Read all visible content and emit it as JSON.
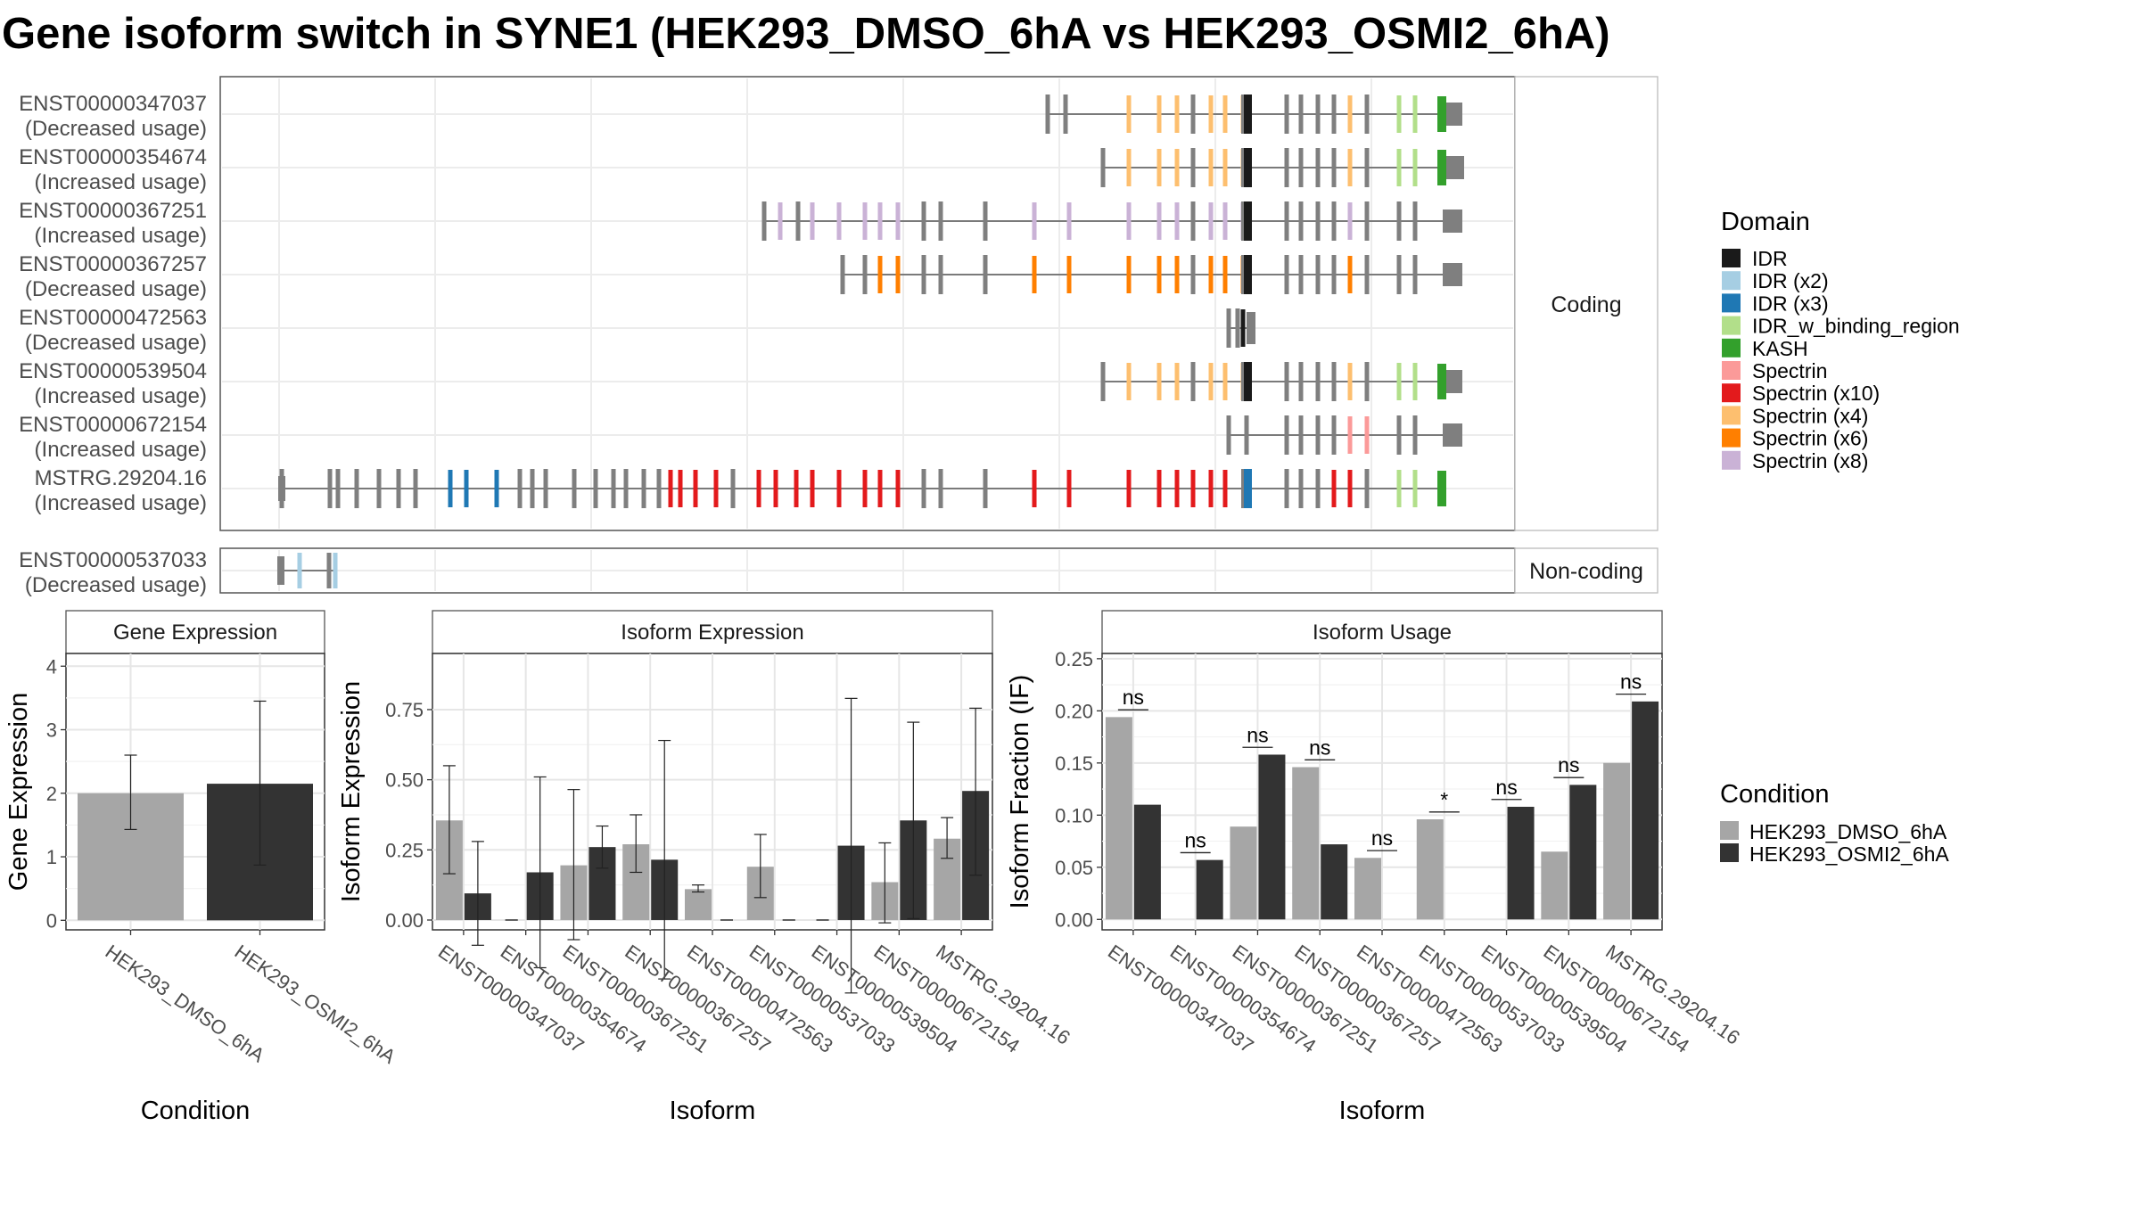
{
  "title": "Gene isoform switch in SYNE1 (HEK293_DMSO_6hA vs HEK293_OSMI2_6hA)",
  "structure": {
    "panel_labels": {
      "coding": "Coding",
      "noncoding": "Non-coding"
    },
    "legend": {
      "title": "Domain",
      "items": [
        {
          "label": "IDR",
          "color": "#1a1a1a"
        },
        {
          "label": "IDR (x2)",
          "color": "#a6cee3"
        },
        {
          "label": "IDR (x3)",
          "color": "#1f78b4"
        },
        {
          "label": "IDR_w_binding_region",
          "color": "#b2df8a"
        },
        {
          "label": "KASH",
          "color": "#33a02c"
        },
        {
          "label": "Spectrin",
          "color": "#fb9a99"
        },
        {
          "label": "Spectrin (x10)",
          "color": "#e31a1c"
        },
        {
          "label": "Spectrin (x4)",
          "color": "#fdbf6f"
        },
        {
          "label": "Spectrin (x6)",
          "color": "#ff7f00"
        },
        {
          "label": "Spectrin (x8)",
          "color": "#cab2d6"
        }
      ]
    },
    "coding_isoforms": [
      {
        "id": "ENST00000347037",
        "usage": "(Decreased usage)"
      },
      {
        "id": "ENST00000354674",
        "usage": "(Increased usage)"
      },
      {
        "id": "ENST00000367251",
        "usage": "(Increased usage)"
      },
      {
        "id": "ENST00000367257",
        "usage": "(Decreased usage)"
      },
      {
        "id": "ENST00000472563",
        "usage": "(Decreased usage)"
      },
      {
        "id": "ENST00000539504",
        "usage": "(Increased usage)"
      },
      {
        "id": "ENST00000672154",
        "usage": "(Increased usage)"
      },
      {
        "id": "MSTRG.29204.16",
        "usage": "(Increased usage)"
      }
    ],
    "noncoding_isoforms": [
      {
        "id": "ENST00000537033",
        "usage": "(Decreased usage)"
      }
    ]
  },
  "condition_legend": {
    "title": "Condition",
    "items": [
      {
        "label": "HEK293_DMSO_6hA",
        "color": "#a6a6a6"
      },
      {
        "label": "HEK293_OSMI2_6hA",
        "color": "#333333"
      }
    ]
  },
  "chart_data": [
    {
      "type": "bar",
      "title": "Gene Expression",
      "xlabel": "Condition",
      "ylabel": "Gene Expression",
      "categories": [
        "HEK293_DMSO_6hA",
        "HEK293_OSMI2_6hA"
      ],
      "ylim": [
        -0.15,
        4.2
      ],
      "yticks": [
        0,
        1,
        2,
        3,
        4
      ],
      "values": [
        2.0,
        2.15
      ],
      "err_low": [
        1.43,
        0.87
      ],
      "err_high": [
        2.6,
        3.45
      ]
    },
    {
      "type": "bar",
      "title": "Isoform Expression",
      "xlabel": "Isoform",
      "ylabel": "Isoform Expression",
      "categories": [
        "ENST00000347037",
        "ENST00000354674",
        "ENST00000367251",
        "ENST00000367257",
        "ENST00000472563",
        "ENST00000537033",
        "ENST00000539504",
        "ENST00000672154",
        "MSTRG.29204.16"
      ],
      "ylim": [
        -0.035,
        0.95
      ],
      "yticks": [
        0.0,
        0.25,
        0.5,
        0.75
      ],
      "ytick_labels": [
        "0.00",
        "0.25",
        "0.50",
        "0.75"
      ],
      "series": [
        {
          "name": "HEK293_DMSO_6hA",
          "values": [
            0.355,
            0.0,
            0.195,
            0.27,
            0.11,
            0.19,
            0.0,
            0.135,
            0.29
          ],
          "err_low": [
            0.165,
            0.0,
            -0.07,
            0.17,
            0.1,
            0.08,
            0.0,
            -0.01,
            0.22
          ],
          "err_high": [
            0.55,
            0.0,
            0.465,
            0.375,
            0.125,
            0.305,
            0.0,
            0.275,
            0.365
          ]
        },
        {
          "name": "HEK293_OSMI2_6hA",
          "values": [
            0.095,
            0.17,
            0.26,
            0.215,
            0.0,
            0.0,
            0.265,
            0.355,
            0.46
          ],
          "err_low": [
            -0.09,
            -0.17,
            0.185,
            -0.21,
            0.0,
            0.0,
            -0.26,
            0.005,
            0.16
          ],
          "err_high": [
            0.28,
            0.51,
            0.335,
            0.64,
            0.0,
            0.0,
            0.79,
            0.705,
            0.755
          ]
        }
      ]
    },
    {
      "type": "bar",
      "title": "Isoform Usage",
      "xlabel": "Isoform",
      "ylabel": "Isoform Fraction (IF)",
      "categories": [
        "ENST00000347037",
        "ENST00000354674",
        "ENST00000367251",
        "ENST00000367257",
        "ENST00000472563",
        "ENST00000537033",
        "ENST00000539504",
        "ENST00000672154",
        "MSTRG.29204.16"
      ],
      "ylim": [
        -0.01,
        0.255
      ],
      "yticks": [
        0.0,
        0.05,
        0.1,
        0.15,
        0.2,
        0.25
      ],
      "ytick_labels": [
        "0.00",
        "0.05",
        "0.10",
        "0.15",
        "0.20",
        "0.25"
      ],
      "series": [
        {
          "name": "HEK293_DMSO_6hA",
          "values": [
            0.194,
            0.0,
            0.089,
            0.146,
            0.059,
            0.096,
            0.0,
            0.065,
            0.15
          ]
        },
        {
          "name": "HEK293_OSMI2_6hA",
          "values": [
            0.11,
            0.057,
            0.158,
            0.072,
            0.0,
            0.0,
            0.108,
            0.129,
            0.209
          ]
        }
      ],
      "significance": [
        "ns",
        "ns",
        "ns",
        "ns",
        "ns",
        "*",
        "ns",
        "ns",
        "ns"
      ],
      "significance_y": [
        0.201,
        0.064,
        0.165,
        0.153,
        0.066,
        0.103,
        0.115,
        0.136,
        0.216
      ]
    }
  ]
}
